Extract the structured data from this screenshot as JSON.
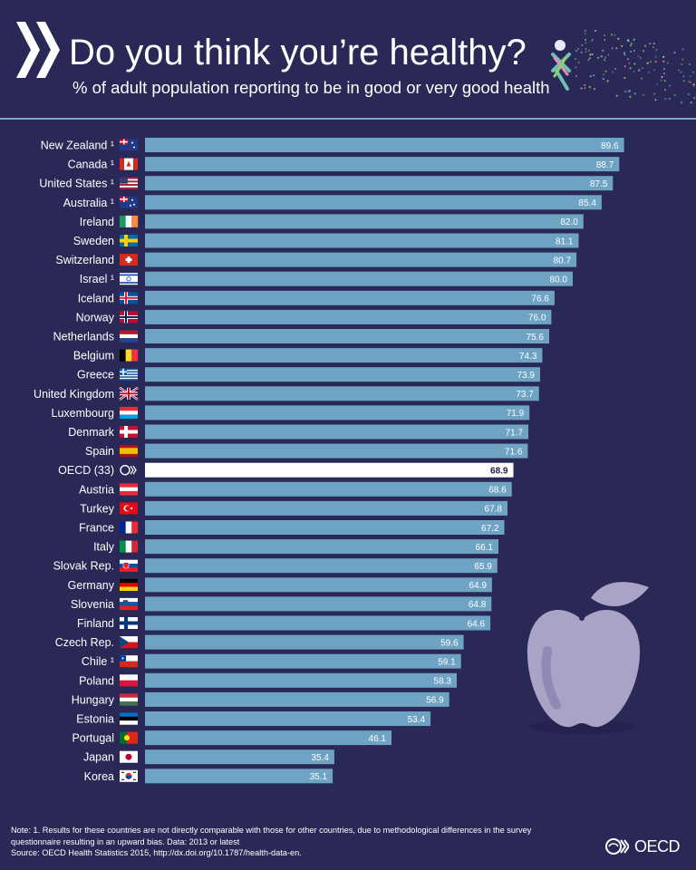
{
  "header": {
    "title": "Do you think you’re healthy?",
    "subtitle": "% of adult population reporting to be in good or very good health"
  },
  "chart_data": {
    "type": "bar",
    "orientation": "horizontal",
    "title": "Do you think you’re healthy?",
    "subtitle": "% of adult population reporting to be in good or very good health",
    "xlim": [
      0,
      100
    ],
    "categories": [
      "New Zealand ¹",
      "Canada ¹",
      "United States ¹",
      "Australia ¹",
      "Ireland",
      "Sweden",
      "Switzerland",
      "Israel ¹",
      "Iceland",
      "Norway",
      "Netherlands",
      "Belgium",
      "Greece",
      "United Kingdom",
      "Luxembourg",
      "Denmark",
      "Spain",
      "OECD (33)",
      "Austria",
      "Turkey",
      "France",
      "Italy",
      "Slovak Rep.",
      "Germany",
      "Slovenia",
      "Finland",
      "Czech Rep.",
      "Chile ¹",
      "Poland",
      "Hungary",
      "Estonia",
      "Portugal",
      "Japan",
      "Korea"
    ],
    "values": [
      89.6,
      88.7,
      87.5,
      85.4,
      82.0,
      81.1,
      80.7,
      80.0,
      76.6,
      76.0,
      75.6,
      74.3,
      73.9,
      73.7,
      71.9,
      71.7,
      71.6,
      68.9,
      68.6,
      67.8,
      67.2,
      66.1,
      65.9,
      64.9,
      64.8,
      64.6,
      59.6,
      59.1,
      58.3,
      56.9,
      53.4,
      46.1,
      35.4,
      35.1
    ],
    "value_labels": [
      "89.6",
      "88.7",
      "87.5",
      "85.4",
      "82.0",
      "81.1",
      "80.7",
      "80.0",
      "76.6",
      "76.0",
      "75.6",
      "74.3",
      "73.9",
      "73.7",
      "71.9",
      "71.7",
      "71.6",
      "68.9",
      "68.6",
      "67.8",
      "67.2",
      "66.1",
      "65.9",
      "64.9",
      "64.8",
      "64.6",
      "59.6",
      "59.1",
      "58.3",
      "56.9",
      "53.4",
      "46.1",
      "35.4",
      "35.1"
    ],
    "highlight": "OECD (33)",
    "flags": [
      "nz",
      "ca",
      "us",
      "au",
      "ie",
      "se",
      "ch",
      "il",
      "is",
      "no",
      "nl",
      "be",
      "gr",
      "gb",
      "lu",
      "dk",
      "es",
      "oecd",
      "at",
      "tr",
      "fr",
      "it",
      "sk",
      "de",
      "si",
      "fi",
      "cz",
      "cl",
      "pl",
      "hu",
      "ee",
      "pt",
      "jp",
      "kr"
    ]
  },
  "colors": {
    "background": "#2a2856",
    "bar": "#6ea3c4",
    "highlight_bar": "#ffffff",
    "rule": "#7aa7c7",
    "apple": "#a9a3c6"
  },
  "footer": {
    "note_line1": "Note: 1. Results for these countries are not directly comparable with those for other countries, due to methodological differences in the survey",
    "note_line2": "questionnaire resulting in an upward bias. Data: 2013 or latest",
    "source": "Source: OECD Health Statistics 2015, http://dx.doi.org/10.1787/health-data-en.",
    "logo_text": "OECD"
  }
}
